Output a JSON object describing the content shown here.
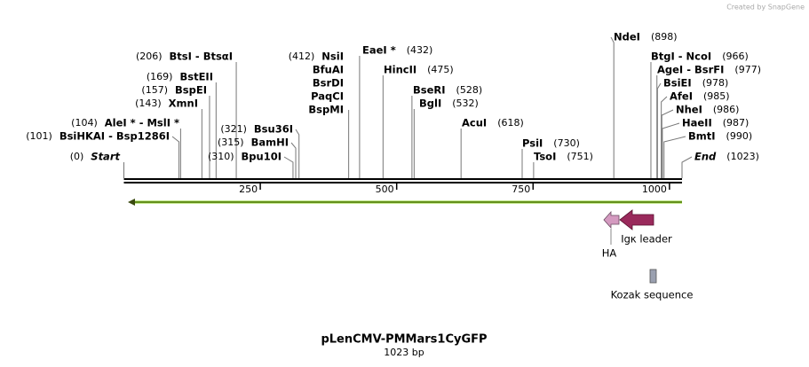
{
  "credit": "Created by SnapGene",
  "title": "pLenCMV-PMMars1CyGFP",
  "length": "1023 bp",
  "ruler": {
    "max": 1023,
    "ticks": [
      250,
      500,
      750,
      1000
    ]
  },
  "sites": [
    {
      "names": [
        "Start"
      ],
      "location": "(0)",
      "position": 0,
      "italic": true
    },
    {
      "names": [
        "BsiHKAI  -  Bsp1286I"
      ],
      "location": "(101)",
      "position": 101
    },
    {
      "names": [
        "AleI *  -  MslI *"
      ],
      "location": "(104)",
      "position": 104
    },
    {
      "names": [
        "XmnI"
      ],
      "location": "(143)",
      "position": 143
    },
    {
      "names": [
        "BspEI"
      ],
      "location": "(157)",
      "position": 157
    },
    {
      "names": [
        "BstEII"
      ],
      "location": "(169)",
      "position": 169
    },
    {
      "names": [
        "BtsI  -  BtsαI"
      ],
      "location": "(206)",
      "position": 206
    },
    {
      "names": [
        "Bpu10I"
      ],
      "location": "(310)",
      "position": 310
    },
    {
      "names": [
        "BamHI"
      ],
      "location": "(315)",
      "position": 315
    },
    {
      "names": [
        "Bsu36I"
      ],
      "location": "(321)",
      "position": 321
    },
    {
      "names": [
        "NsiI",
        "BfuAI",
        "BsrDI",
        "PaqCI",
        "BspMI"
      ],
      "location": "(412)",
      "position": 412
    },
    {
      "names": [
        "EaeI *"
      ],
      "location": "(432)",
      "position": 432
    },
    {
      "names": [
        "HincII"
      ],
      "location": "(475)",
      "position": 475
    },
    {
      "names": [
        "BseRI"
      ],
      "location": "(528)",
      "position": 528
    },
    {
      "names": [
        "BglI"
      ],
      "location": "(532)",
      "position": 532
    },
    {
      "names": [
        "AcuI"
      ],
      "location": "(618)",
      "position": 618
    },
    {
      "names": [
        "PsiI"
      ],
      "location": "(730)",
      "position": 730
    },
    {
      "names": [
        "TsoI"
      ],
      "location": "(751)",
      "position": 751
    },
    {
      "names": [
        "NdeI"
      ],
      "location": "(898)",
      "position": 898
    },
    {
      "names": [
        "BtgI  -  NcoI"
      ],
      "location": "(966)",
      "position": 966
    },
    {
      "names": [
        "AgeI  -  BsrFI"
      ],
      "location": "(977)",
      "position": 977
    },
    {
      "names": [
        "BsiEI"
      ],
      "location": "(978)",
      "position": 978
    },
    {
      "names": [
        "AfeI"
      ],
      "location": "(985)",
      "position": 985
    },
    {
      "names": [
        "NheI"
      ],
      "location": "(986)",
      "position": 986
    },
    {
      "names": [
        "HaeII"
      ],
      "location": "(987)",
      "position": 987
    },
    {
      "names": [
        "BmtI"
      ],
      "location": "(990)",
      "position": 990
    },
    {
      "names": [
        "End"
      ],
      "location": "(1023)",
      "position": 1023,
      "italic": true
    }
  ],
  "features": [
    {
      "label": "HA"
    },
    {
      "label": "Igκ leader"
    },
    {
      "label": "Kozak sequence"
    }
  ]
}
